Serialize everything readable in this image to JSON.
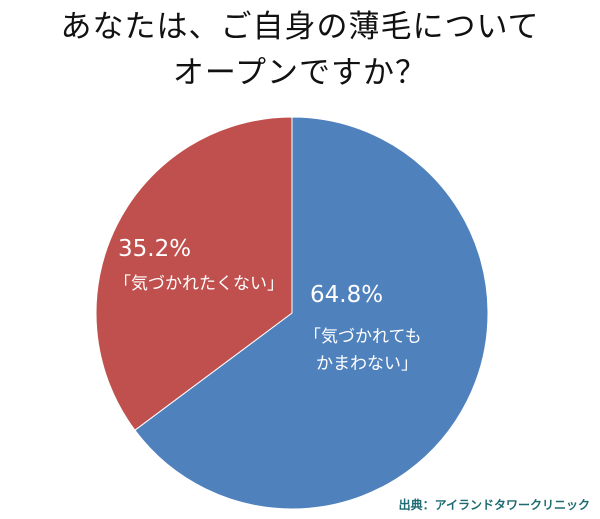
{
  "chart_data": {
    "type": "pie",
    "title_lines": [
      "あなたは、ご自身の薄毛について",
      "オープンですか？"
    ],
    "slices": [
      {
        "value": 64.8,
        "value_label": "64.8%",
        "label_lines": [
          "「気づかれても",
          "かまわない」"
        ],
        "color": "#4f81bd"
      },
      {
        "value": 35.2,
        "value_label": "35.2%",
        "label_lines": [
          "「気づかれたくない」"
        ],
        "color": "#c0504d"
      }
    ],
    "start": "12 o'clock, clockwise"
  },
  "source": "出典：アイランドタワークリニック"
}
